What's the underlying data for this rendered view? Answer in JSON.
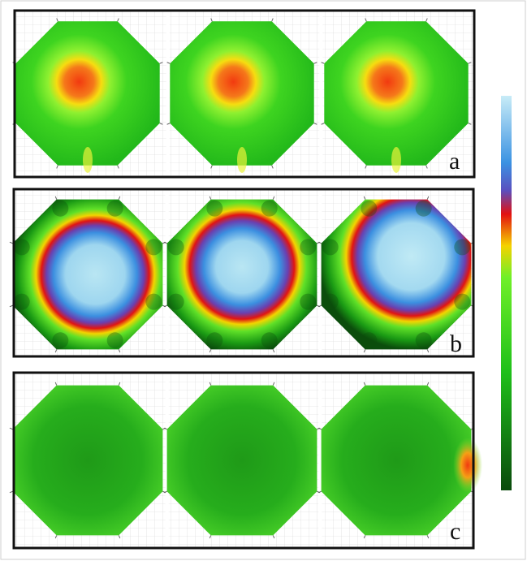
{
  "panels": [
    {
      "label": "a",
      "subplots": [
        {
          "pattern": "central-hotspot",
          "hotspot_color": "orange-red",
          "field_color": "green"
        },
        {
          "pattern": "central-hotspot",
          "hotspot_color": "orange-red",
          "field_color": "green"
        },
        {
          "pattern": "central-hotspot",
          "hotspot_color": "orange-red",
          "field_color": "green"
        }
      ]
    },
    {
      "label": "b",
      "subplots": [
        {
          "pattern": "large-cyan-blob",
          "field_color": "green"
        },
        {
          "pattern": "large-cyan-blob",
          "field_color": "green"
        },
        {
          "pattern": "large-cyan-blob",
          "field_color": "green"
        }
      ]
    },
    {
      "label": "c",
      "subplots": [
        {
          "pattern": "uniform",
          "field_color": "green"
        },
        {
          "pattern": "uniform",
          "field_color": "green"
        },
        {
          "pattern": "uniform-with-right-edge-hotspot",
          "field_color": "green",
          "edge_color": "orange-red"
        }
      ]
    }
  ],
  "colorbar": {
    "orientation": "vertical",
    "top_color": "#bfe8f5",
    "colors_top_to_bottom": [
      "#bfe8f5",
      "#3a90e0",
      "#5050c0",
      "#e01010",
      "#f7d000",
      "#6cf020",
      "#10c010",
      "#0a4a0a"
    ]
  }
}
